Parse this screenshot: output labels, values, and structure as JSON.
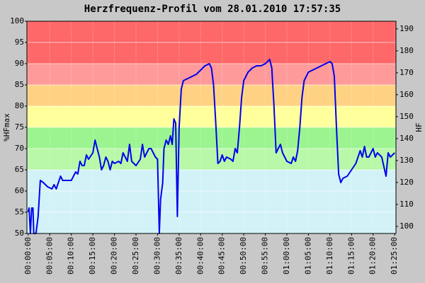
{
  "chart_data": {
    "type": "line",
    "title": "Herzfrequenz-Profil vom 28.01.2010 17:57:35",
    "ylabel": "%HFmax",
    "y2label": "HF",
    "xlim": [
      -0.3,
      85.3
    ],
    "xticks": [
      {
        "value": 0,
        "label": "00:00:00"
      },
      {
        "value": 5,
        "label": "00:05:00"
      },
      {
        "value": 10,
        "label": "00:10:00"
      },
      {
        "value": 15,
        "label": "00:15:00"
      },
      {
        "value": 20,
        "label": "00:20:00"
      },
      {
        "value": 25,
        "label": "00:25:00"
      },
      {
        "value": 30,
        "label": "00:30:00"
      },
      {
        "value": 35,
        "label": "00:35:00"
      },
      {
        "value": 40,
        "label": "00:40:00"
      },
      {
        "value": 45,
        "label": "00:45:00"
      },
      {
        "value": 50,
        "label": "00:50:00"
      },
      {
        "value": 55,
        "label": "00:55:00"
      },
      {
        "value": 60,
        "label": "01:00:00"
      },
      {
        "value": 65,
        "label": "01:05:00"
      },
      {
        "value": 70,
        "label": "01:10:00"
      },
      {
        "value": 75,
        "label": "01:15:00"
      },
      {
        "value": 80,
        "label": "01:20:00"
      },
      {
        "value": 85,
        "label": "01:25:00"
      }
    ],
    "ylim": [
      50,
      100
    ],
    "yticks": [
      50,
      55,
      60,
      65,
      70,
      75,
      80,
      85,
      90,
      95,
      100
    ],
    "y2lim": [
      96.75,
      193.5
    ],
    "y2ticks": [
      100,
      110,
      120,
      130,
      140,
      150,
      160,
      170,
      180,
      190
    ],
    "grid": true,
    "zones": [
      {
        "from": 50,
        "to": 65,
        "color": "#d2f2f8"
      },
      {
        "from": 65,
        "to": 70,
        "color": "#b8f8a8"
      },
      {
        "from": 70,
        "to": 75,
        "color": "#9cf490"
      },
      {
        "from": 75,
        "to": 80,
        "color": "#ffff9c"
      },
      {
        "from": 80,
        "to": 85,
        "color": "#ffd283"
      },
      {
        "from": 85,
        "to": 90,
        "color": "#ff9a9a"
      },
      {
        "from": 90,
        "to": 100,
        "color": "#ff6868"
      }
    ],
    "series": [
      {
        "color": "#0000ee",
        "x": [
          0,
          0.2,
          0.5,
          0.8,
          1.1,
          1.3,
          1.8,
          2.3,
          2.8,
          3.5,
          4.5,
          5.5,
          6.0,
          6.5,
          7.5,
          8,
          9,
          10,
          11,
          11.5,
          12,
          12.5,
          13,
          13.5,
          14,
          15,
          15.5,
          16,
          16.5,
          17,
          17.5,
          18,
          18.5,
          19,
          19.5,
          20,
          21,
          21.5,
          22,
          22.5,
          23,
          23.5,
          24,
          25,
          26,
          26.5,
          27,
          28,
          28.5,
          29.5,
          30,
          30.4,
          30.7,
          31.2,
          31.5,
          32,
          32.5,
          33,
          33.4,
          33.8,
          34.2,
          34.6,
          35,
          35.5,
          36,
          37,
          38,
          39,
          40,
          41,
          42,
          42.5,
          43,
          43.5,
          44,
          44.5,
          45,
          45.5,
          46,
          47,
          47.5,
          48,
          48.5,
          49,
          49.5,
          50,
          51,
          52,
          53,
          54,
          55,
          56,
          56.5,
          57,
          57.5,
          58,
          58.5,
          59,
          60,
          61,
          61.5,
          62,
          62.5,
          63,
          63.5,
          64,
          65,
          66,
          67,
          68,
          69,
          70,
          70.5,
          71,
          71.5,
          72,
          72.5,
          73,
          74,
          75,
          76,
          77,
          77.5,
          78,
          78.5,
          79,
          80,
          80.5,
          81,
          82,
          83,
          83.5,
          84,
          85
        ],
        "values": [
          55,
          56,
          50,
          56,
          56,
          50,
          50,
          54,
          62.5,
          62,
          61,
          60.5,
          61.5,
          60.5,
          63.5,
          62.5,
          62.5,
          62.5,
          64.5,
          64,
          67,
          66,
          66,
          68.5,
          67.5,
          69,
          72,
          70,
          68,
          65,
          66,
          68,
          67,
          65,
          67,
          66.5,
          67,
          66.5,
          69,
          68,
          67,
          71,
          67,
          66,
          67.5,
          71,
          68,
          70,
          70,
          68,
          67.5,
          50,
          58,
          62,
          70,
          72,
          71,
          73,
          71,
          77,
          76,
          54,
          75,
          84,
          86,
          86.5,
          87,
          87.5,
          88.5,
          89.5,
          90,
          89,
          85,
          76,
          66.5,
          67,
          68.5,
          67,
          68,
          67.5,
          67,
          70,
          69,
          75,
          82,
          86,
          88,
          89,
          89.5,
          89.5,
          90,
          91,
          89,
          80,
          69,
          70,
          71,
          69,
          67,
          66.5,
          68,
          67,
          69.5,
          75,
          82,
          86,
          88,
          88.5,
          89,
          89.5,
          90,
          90.5,
          90,
          87,
          75,
          64,
          62,
          63,
          63.5,
          65,
          66.5,
          69.5,
          68,
          70.5,
          68,
          68,
          70,
          68,
          69,
          68,
          63.5,
          69,
          68,
          69
        ]
      }
    ]
  }
}
